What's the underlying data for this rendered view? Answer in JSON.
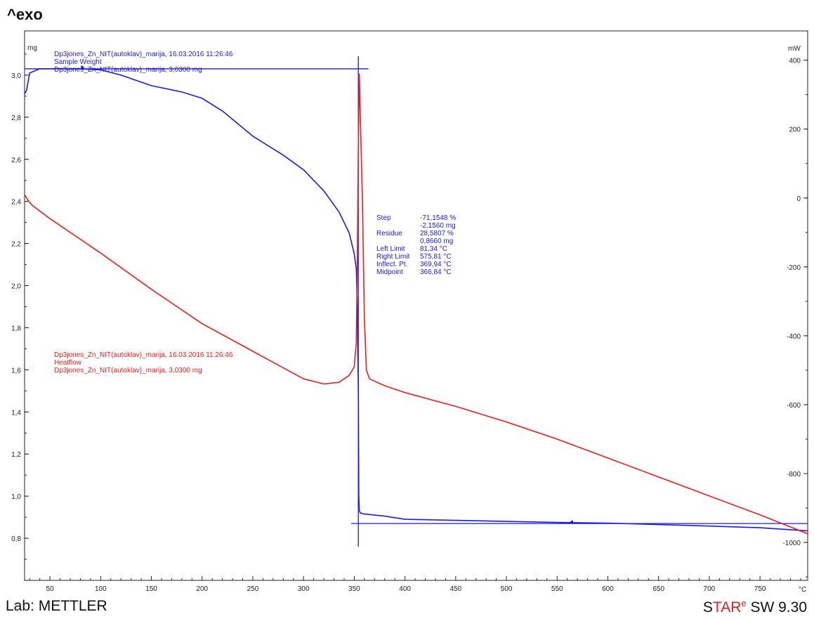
{
  "header": {
    "exo_label": "^exo"
  },
  "footer": {
    "lab": "Lab: METTLER",
    "sw_prefix": "S",
    "sw_highlight": "TAR",
    "sw_sup": "e",
    "sw_suffix": " SW 9.30"
  },
  "colors": {
    "weight": "#1a1af0",
    "heatflow": "#ee1c1c",
    "axis": "#222222"
  },
  "chart_data": {
    "type": "line",
    "title": "",
    "xlabel": "°C",
    "ylabel_left": "mg",
    "ylabel_right": "mW",
    "xlim": [
      25,
      797
    ],
    "ylim_left": [
      0.6,
      3.21
    ],
    "ylim_right": [
      -1110,
      485
    ],
    "x_ticks": [
      50,
      100,
      150,
      200,
      250,
      300,
      350,
      400,
      450,
      500,
      550,
      600,
      650,
      700,
      750
    ],
    "y_left_ticks": [
      "0,8",
      "1,0",
      "1,2",
      "1,4",
      "1,6",
      "1,8",
      "2,0",
      "2,2",
      "2,4",
      "2,6",
      "2,8",
      "3,0"
    ],
    "y_right_ticks": [
      "-1000",
      "-800",
      "-600",
      "-400",
      "-200",
      "0",
      "200",
      "400"
    ],
    "series": [
      {
        "name": "Sample Weight",
        "axis": "left",
        "info": [
          "Dp3jones_Zn_NIT(autoklav)_marija, 16.03.2016 11:26:46",
          "Sample Weight",
          "Dp3jones_Zn_NIT(autoklav)_marija, 3,0300 mg"
        ],
        "x": [
          25,
          27,
          30,
          40,
          60,
          80,
          100,
          120,
          150,
          180,
          200,
          220,
          250,
          280,
          300,
          320,
          335,
          345,
          350,
          352,
          353,
          354,
          354.5,
          355,
          356,
          360,
          380,
          400,
          450,
          500,
          550,
          600,
          650,
          700,
          750,
          797
        ],
        "y": [
          2.91,
          2.93,
          3.01,
          3.03,
          3.03,
          3.03,
          3.025,
          3.0,
          2.95,
          2.92,
          2.89,
          2.83,
          2.71,
          2.62,
          2.55,
          2.45,
          2.35,
          2.25,
          2.15,
          2.08,
          1.9,
          1.5,
          1.0,
          0.93,
          0.92,
          0.915,
          0.905,
          0.89,
          0.885,
          0.88,
          0.875,
          0.872,
          0.865,
          0.858,
          0.85,
          0.835
        ]
      },
      {
        "name": "Heatflow",
        "axis": "right",
        "info": [
          "Dp3jones_Zn_NIT(autoklav)_marija, 16.03.2016 11:26:46",
          "Heatflow",
          "Dp3jones_Zn_NIT(autoklav)_marija, 3,0300 mg"
        ],
        "x": [
          25,
          28,
          32,
          50,
          100,
          150,
          200,
          250,
          300,
          320,
          335,
          345,
          350,
          352,
          353,
          354,
          355,
          356,
          358,
          360,
          362,
          365,
          380,
          400,
          450,
          500,
          550,
          600,
          650,
          700,
          750,
          797
        ],
        "y": [
          10,
          -5,
          -20,
          -60,
          -160,
          -265,
          -365,
          -445,
          -525,
          -540,
          -535,
          -515,
          -490,
          -420,
          -200,
          150,
          360,
          230,
          0,
          -350,
          -500,
          -525,
          -545,
          -565,
          -605,
          -650,
          -700,
          -755,
          -810,
          -865,
          -920,
          -975
        ]
      }
    ],
    "step_annotation": {
      "labels": [
        "Step",
        "",
        "Residue",
        "",
        "Left Limit",
        "Right Limit",
        "Inflect. Pt.",
        "Midpoint"
      ],
      "values": [
        "-71,1548 %",
        "-2,1560 mg",
        "28,5807 %",
        "0,8660 mg",
        "81,34 °C",
        "575,81 °C",
        "369,94 °C",
        "366,84 °C"
      ],
      "upper_level_mg": 3.03,
      "lower_level_mg": 0.87,
      "step_x": 354,
      "left_marker_x": 81.34,
      "right_marker_x": 565
    }
  }
}
